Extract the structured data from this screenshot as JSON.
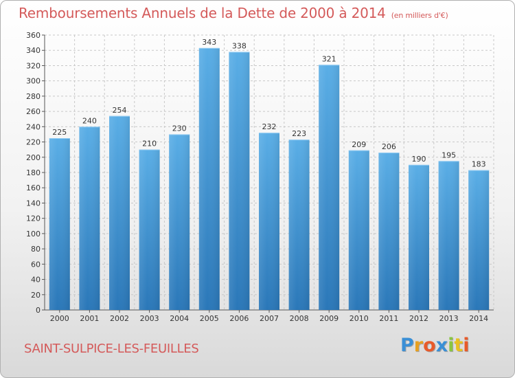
{
  "header": {
    "title": "Remboursements Annuels de la Dette de 2000 à 2014",
    "unit": "(en milliers d'€)"
  },
  "footer": {
    "location": "SAINT-SULPICE-LES-FEUILLES",
    "logo": "Proxiti"
  },
  "colors": {
    "title": "#d45a5a",
    "bar_top": "#5aaee6",
    "bar_bottom": "#2a77b8",
    "grid": "#c8c8c8"
  },
  "chart_data": {
    "type": "bar",
    "title": "Remboursements Annuels de la Dette de 2000 à 2014",
    "xlabel": "",
    "ylabel": "",
    "ylim": [
      0,
      360
    ],
    "ytick_step": 20,
    "grid": true,
    "categories": [
      "2000",
      "2001",
      "2002",
      "2003",
      "2004",
      "2005",
      "2006",
      "2007",
      "2008",
      "2009",
      "2010",
      "2011",
      "2012",
      "2013",
      "2014"
    ],
    "values": [
      225,
      240,
      254,
      210,
      230,
      343,
      338,
      232,
      223,
      321,
      209,
      206,
      190,
      195,
      183
    ]
  }
}
